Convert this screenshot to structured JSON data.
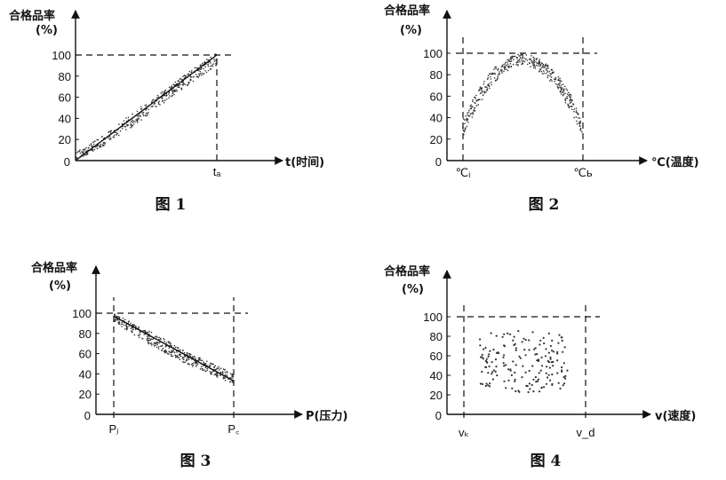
{
  "chart_data": [
    {
      "type": "scatter",
      "caption": "图 1",
      "ylabel_line1": "合格品率",
      "ylabel_line2": "(%)",
      "xlabel": "t(时间)",
      "origin_label": "0",
      "yticks": [
        "20",
        "40",
        "60",
        "80",
        "100"
      ],
      "ylim": [
        0,
        100
      ],
      "x_markers": [
        {
          "label": "tₐ",
          "x": 1
        }
      ],
      "reference_y": 100,
      "band": {
        "x": [
          0,
          0.2,
          0.4,
          0.6,
          0.8,
          1
        ],
        "upper": [
          8,
          24,
          45,
          64,
          84,
          102
        ],
        "lower": [
          0,
          14,
          32,
          52,
          72,
          90
        ]
      },
      "trend": [
        [
          0,
          0
        ],
        [
          1,
          100
        ]
      ]
    },
    {
      "type": "scatter",
      "caption": "图 2",
      "ylabel_line1": "合格品率",
      "ylabel_line2": "(%)",
      "xlabel": "℃(温度)",
      "origin_label": "0",
      "yticks": [
        "20",
        "40",
        "60",
        "80",
        "100"
      ],
      "ylim": [
        0,
        100
      ],
      "x_markers": [
        {
          "label": "℃ᵢ",
          "x": 0
        },
        {
          "label": "℃ь",
          "x": 1
        }
      ],
      "reference_y": 100,
      "band": {
        "x": [
          0,
          0.1,
          0.25,
          0.4,
          0.5,
          0.6,
          0.75,
          0.9,
          1
        ],
        "upper": [
          38,
          62,
          86,
          97,
          100,
          97,
          86,
          62,
          32
        ],
        "lower": [
          22,
          46,
          72,
          86,
          90,
          86,
          72,
          46,
          22
        ]
      }
    },
    {
      "type": "scatter",
      "caption": "图 3",
      "ylabel_line1": "合格品率",
      "ylabel_line2": "(%)",
      "xlabel": "P(压力)",
      "origin_label": "0",
      "yticks": [
        "20",
        "40",
        "60",
        "80",
        "100"
      ],
      "ylim": [
        0,
        100
      ],
      "x_markers": [
        {
          "label": "Pⱼ",
          "x": 0
        },
        {
          "label": "P꜀",
          "x": 1
        }
      ],
      "reference_y": 100,
      "band": {
        "x": [
          0,
          0.2,
          0.4,
          0.6,
          0.8,
          1
        ],
        "upper": [
          100,
          88,
          76,
          62,
          52,
          40
        ],
        "lower": [
          92,
          76,
          62,
          50,
          40,
          30
        ]
      },
      "trend": [
        [
          0,
          97
        ],
        [
          1,
          33
        ]
      ]
    },
    {
      "type": "scatter",
      "caption": "图 4",
      "ylabel_line1": "合格品率",
      "ylabel_line2": "(%)",
      "xlabel": "v(速度)",
      "origin_label": "0",
      "yticks": [
        "20",
        "40",
        "60",
        "80",
        "100"
      ],
      "ylim": [
        0,
        100
      ],
      "x_markers": [
        {
          "label": "vₖ",
          "x": 0
        },
        {
          "label": "v_d",
          "x": 1
        }
      ],
      "reference_y": 100,
      "band": {
        "x": [
          0.12,
          0.3,
          0.5,
          0.7,
          0.85
        ],
        "upper": [
          80,
          86,
          86,
          84,
          80
        ],
        "lower": [
          30,
          24,
          22,
          24,
          28
        ]
      }
    }
  ]
}
